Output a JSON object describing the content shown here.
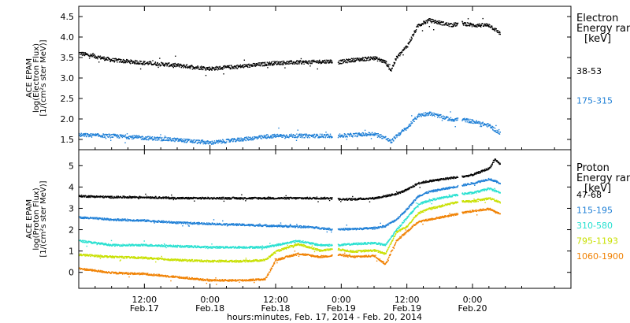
{
  "chart_data": {
    "type": "scatter",
    "x_axis": {
      "title": "hours:minutes, Feb. 17, 2014 - Feb. 20, 2014",
      "range_hours": [
        0,
        90
      ],
      "ticks": [
        {
          "h": 12,
          "time": "12:00",
          "date": "Feb.17"
        },
        {
          "h": 24,
          "time": "0:00",
          "date": "Feb.18"
        },
        {
          "h": 36,
          "time": "12:00",
          "date": "Feb.18"
        },
        {
          "h": 48,
          "time": "0:00",
          "date": "Feb.19"
        },
        {
          "h": 60,
          "time": "12:00",
          "date": "Feb.19"
        },
        {
          "h": 72,
          "time": "0:00",
          "date": "Feb.20"
        }
      ]
    },
    "panels": [
      {
        "name": "electron",
        "ylabel": [
          "ACE EPAM",
          "log(Electron Flux)",
          "[1/(cm²s ster MeV)]"
        ],
        "ylim": [
          1.25,
          4.75
        ],
        "yticks": [
          1.5,
          2.0,
          2.5,
          3.0,
          3.5,
          4.0,
          4.5
        ],
        "ytick_labels": [
          "1.5",
          "2.0",
          "2.5",
          "3.0",
          "3.5",
          "4.0",
          "4.5"
        ],
        "legend_title": [
          "Electron",
          "Energy range",
          "[keV]"
        ],
        "series": [
          {
            "name": "38-53",
            "color": "#000000",
            "points": [
              [
                0,
                3.62
              ],
              [
                6,
                3.45
              ],
              [
                12,
                3.38
              ],
              [
                18,
                3.32
              ],
              [
                24,
                3.24
              ],
              [
                30,
                3.3
              ],
              [
                36,
                3.38
              ],
              [
                42,
                3.4
              ],
              [
                46,
                3.42
              ],
              [
                47.5,
                3.4
              ],
              [
                50,
                3.45
              ],
              [
                54,
                3.5
              ],
              [
                56,
                3.4
              ],
              [
                57,
                3.2
              ],
              [
                58,
                3.5
              ],
              [
                60,
                3.8
              ],
              [
                62,
                4.3
              ],
              [
                64,
                4.42
              ],
              [
                68,
                4.3
              ],
              [
                70,
                4.35
              ],
              [
                72,
                4.3
              ],
              [
                75,
                4.3
              ],
              [
                77,
                4.1
              ]
            ]
          },
          {
            "name": "175-315",
            "color": "#1e7fd6",
            "points": [
              [
                0,
                1.62
              ],
              [
                6,
                1.6
              ],
              [
                12,
                1.55
              ],
              [
                18,
                1.5
              ],
              [
                24,
                1.43
              ],
              [
                30,
                1.52
              ],
              [
                36,
                1.6
              ],
              [
                42,
                1.6
              ],
              [
                46,
                1.6
              ],
              [
                47.5,
                1.6
              ],
              [
                50,
                1.62
              ],
              [
                54,
                1.65
              ],
              [
                56,
                1.55
              ],
              [
                57,
                1.45
              ],
              [
                58,
                1.6
              ],
              [
                60,
                1.8
              ],
              [
                62,
                2.1
              ],
              [
                64,
                2.15
              ],
              [
                68,
                2.0
              ],
              [
                70,
                2.0
              ],
              [
                72,
                1.95
              ],
              [
                75,
                1.85
              ],
              [
                77,
                1.65
              ]
            ]
          }
        ]
      },
      {
        "name": "proton",
        "ylabel": [
          "ACE EPAM",
          "log(Proton Flux)",
          "[1/(cm²s ster MeV)]"
        ],
        "ylim": [
          -0.75,
          5.75
        ],
        "yticks": [
          0,
          1,
          2,
          3,
          4,
          5
        ],
        "ytick_labels": [
          "0",
          "1",
          "2",
          "3",
          "4",
          "5"
        ],
        "legend_title": [
          "Proton",
          "Energy range",
          "[keV]"
        ],
        "series": [
          {
            "name": "47-68",
            "color": "#000000",
            "points": [
              [
                0,
                3.6
              ],
              [
                6,
                3.55
              ],
              [
                12,
                3.55
              ],
              [
                18,
                3.5
              ],
              [
                24,
                3.5
              ],
              [
                30,
                3.5
              ],
              [
                36,
                3.5
              ],
              [
                42,
                3.5
              ],
              [
                46,
                3.5
              ],
              [
                47.5,
                3.45
              ],
              [
                50,
                3.45
              ],
              [
                54,
                3.5
              ],
              [
                56,
                3.6
              ],
              [
                58,
                3.7
              ],
              [
                60,
                3.9
              ],
              [
                62,
                4.2
              ],
              [
                64,
                4.3
              ],
              [
                68,
                4.45
              ],
              [
                70,
                4.5
              ],
              [
                72,
                4.6
              ],
              [
                75,
                4.9
              ],
              [
                76,
                5.3
              ],
              [
                77,
                5.1
              ]
            ]
          },
          {
            "name": "115-195",
            "color": "#1e7fd6",
            "points": [
              [
                0,
                2.6
              ],
              [
                6,
                2.5
              ],
              [
                12,
                2.45
              ],
              [
                18,
                2.35
              ],
              [
                24,
                2.3
              ],
              [
                30,
                2.25
              ],
              [
                36,
                2.2
              ],
              [
                42,
                2.15
              ],
              [
                46,
                2.05
              ],
              [
                47.5,
                2.05
              ],
              [
                50,
                2.05
              ],
              [
                54,
                2.1
              ],
              [
                56,
                2.2
              ],
              [
                58,
                2.5
              ],
              [
                60,
                3.0
              ],
              [
                62,
                3.6
              ],
              [
                64,
                3.8
              ],
              [
                68,
                4.0
              ],
              [
                70,
                4.1
              ],
              [
                72,
                4.2
              ],
              [
                75,
                4.4
              ],
              [
                77,
                4.2
              ]
            ]
          },
          {
            "name": "310-580",
            "color": "#26e0d0",
            "points": [
              [
                0,
                1.5
              ],
              [
                6,
                1.3
              ],
              [
                12,
                1.3
              ],
              [
                18,
                1.25
              ],
              [
                24,
                1.2
              ],
              [
                30,
                1.2
              ],
              [
                34,
                1.2
              ],
              [
                36,
                1.3
              ],
              [
                40,
                1.5
              ],
              [
                44,
                1.3
              ],
              [
                46,
                1.3
              ],
              [
                47.5,
                1.3
              ],
              [
                50,
                1.35
              ],
              [
                54,
                1.4
              ],
              [
                56,
                1.3
              ],
              [
                58,
                2.0
              ],
              [
                60,
                2.6
              ],
              [
                62,
                3.2
              ],
              [
                64,
                3.4
              ],
              [
                68,
                3.6
              ],
              [
                70,
                3.7
              ],
              [
                72,
                3.75
              ],
              [
                75,
                3.95
              ],
              [
                77,
                3.75
              ]
            ]
          },
          {
            "name": "795-1193",
            "color": "#c8e000",
            "points": [
              [
                0,
                0.85
              ],
              [
                6,
                0.75
              ],
              [
                12,
                0.7
              ],
              [
                18,
                0.6
              ],
              [
                24,
                0.55
              ],
              [
                30,
                0.55
              ],
              [
                34,
                0.6
              ],
              [
                36,
                1.0
              ],
              [
                40,
                1.35
              ],
              [
                44,
                1.05
              ],
              [
                46,
                1.1
              ],
              [
                47.5,
                1.1
              ],
              [
                50,
                1.0
              ],
              [
                54,
                1.05
              ],
              [
                56,
                0.9
              ],
              [
                58,
                1.9
              ],
              [
                60,
                2.2
              ],
              [
                62,
                2.8
              ],
              [
                64,
                3.0
              ],
              [
                68,
                3.25
              ],
              [
                70,
                3.35
              ],
              [
                72,
                3.35
              ],
              [
                75,
                3.5
              ],
              [
                77,
                3.3
              ]
            ]
          },
          {
            "name": "1060-1900",
            "color": "#f08000",
            "points": [
              [
                0,
                0.2
              ],
              [
                6,
                0.0
              ],
              [
                12,
                -0.05
              ],
              [
                18,
                -0.2
              ],
              [
                24,
                -0.35
              ],
              [
                30,
                -0.35
              ],
              [
                34,
                -0.3
              ],
              [
                36,
                0.6
              ],
              [
                40,
                0.9
              ],
              [
                44,
                0.75
              ],
              [
                46,
                0.8
              ],
              [
                47.5,
                0.85
              ],
              [
                50,
                0.75
              ],
              [
                54,
                0.8
              ],
              [
                56,
                0.4
              ],
              [
                58,
                1.5
              ],
              [
                60,
                1.95
              ],
              [
                62,
                2.4
              ],
              [
                64,
                2.5
              ],
              [
                68,
                2.7
              ],
              [
                70,
                2.8
              ],
              [
                72,
                2.9
              ],
              [
                75,
                3.0
              ],
              [
                77,
                2.75
              ]
            ]
          }
        ]
      }
    ],
    "gaps_hours": [
      [
        46.3,
        47.3
      ],
      [
        69.3,
        70.0
      ]
    ],
    "grid": false,
    "legend_placement": "right"
  }
}
